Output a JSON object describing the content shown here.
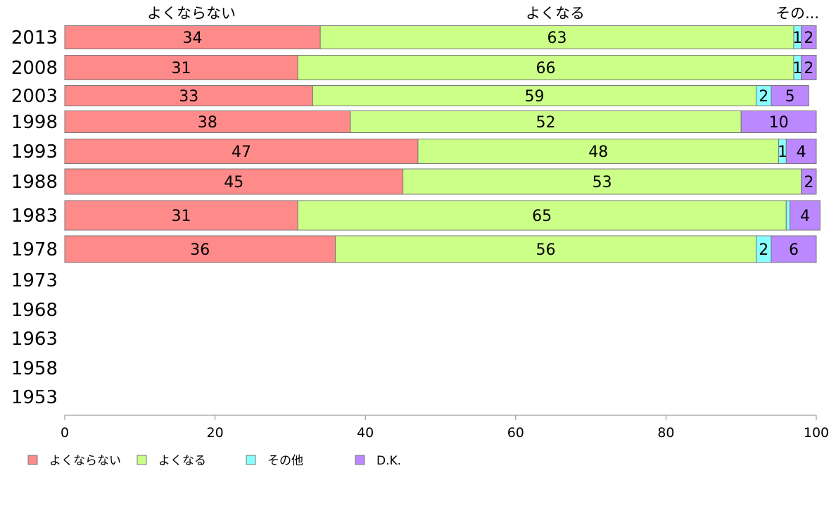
{
  "chart_data": {
    "type": "bar",
    "orientation": "horizontal",
    "stacked": true,
    "categories": [
      "2013",
      "2008",
      "2003",
      "1998",
      "1993",
      "1988",
      "1983",
      "1978",
      "1973",
      "1968",
      "1963",
      "1958",
      "1953"
    ],
    "series": [
      {
        "name": "よくならない",
        "color": "#ff8a8a",
        "values": [
          34,
          31,
          33,
          38,
          47,
          45,
          31,
          36,
          null,
          null,
          null,
          null,
          null
        ],
        "labels": [
          "34",
          "31",
          "33",
          "38",
          "47",
          "45",
          "31",
          "36",
          "",
          "",
          "",
          "",
          ""
        ]
      },
      {
        "name": "よくなる",
        "color": "#ccff88",
        "values": [
          63,
          66,
          59,
          52,
          48,
          53,
          65,
          56,
          null,
          null,
          null,
          null,
          null
        ],
        "labels": [
          "63",
          "66",
          "59",
          "52",
          "48",
          "53",
          "65",
          "56",
          "",
          "",
          "",
          "",
          ""
        ]
      },
      {
        "name": "その他",
        "color": "#88ffff",
        "values": [
          1,
          1,
          2,
          0,
          1,
          0,
          0.5,
          2,
          null,
          null,
          null,
          null,
          null
        ],
        "labels": [
          "1",
          "1",
          "2",
          "",
          "1",
          "",
          "",
          "2",
          "",
          "",
          "",
          "",
          ""
        ]
      },
      {
        "name": "D.K.",
        "color": "#bb88ff",
        "values": [
          2,
          2,
          5,
          10,
          4,
          2,
          4,
          6,
          null,
          null,
          null,
          null,
          null
        ],
        "labels": [
          "2",
          "2",
          "5",
          "10",
          "4",
          "2",
          "4",
          "6",
          "",
          "",
          "",
          "",
          ""
        ]
      }
    ],
    "column_headers": [
      "よくならない",
      "よくなる",
      "その..."
    ],
    "xlim": [
      0,
      100
    ],
    "xticks": [
      "0",
      "20",
      "40",
      "60",
      "80",
      "100"
    ],
    "legend_position": "bottom-left",
    "grid": false
  }
}
